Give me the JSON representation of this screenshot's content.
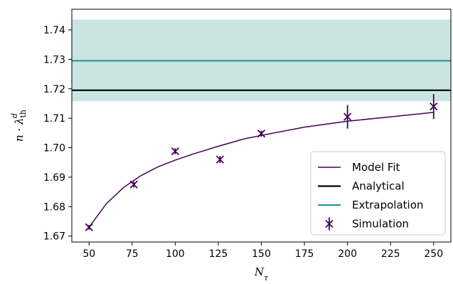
{
  "chart_data": {
    "type": "line",
    "xlabel": "N_τ",
    "ylabel": "n · λ_th^d",
    "xlim": [
      40,
      260
    ],
    "ylim": [
      1.668,
      1.747
    ],
    "xticks": [
      50,
      75,
      100,
      125,
      150,
      175,
      200,
      225,
      250
    ],
    "yticks": [
      1.67,
      1.68,
      1.69,
      1.7,
      1.71,
      1.72,
      1.73,
      1.74
    ],
    "ytick_labels": [
      "1.67",
      "1.68",
      "1.69",
      "1.70",
      "1.71",
      "1.72",
      "1.73",
      "1.74"
    ],
    "analytical": {
      "name": "Analytical",
      "y": 1.7195,
      "color": "#000000"
    },
    "extrapolation": {
      "name": "Extrapolation",
      "y": 1.7295,
      "band": [
        1.7158,
        1.7435
      ],
      "color": "#21918c",
      "band_color": "#c9e4e3"
    },
    "model_fit": {
      "name": "Model Fit",
      "color": "#440154",
      "x": [
        50,
        60,
        70,
        80,
        90,
        100,
        110,
        125,
        140,
        150,
        175,
        200,
        225,
        250
      ],
      "y": [
        1.673,
        1.681,
        1.6865,
        1.6905,
        1.6935,
        1.6958,
        1.6978,
        1.7005,
        1.703,
        1.7042,
        1.707,
        1.709,
        1.7105,
        1.712
      ]
    },
    "simulation": {
      "name": "Simulation",
      "color": "#440154",
      "points": [
        {
          "x": 50,
          "y": 1.673,
          "err": 0.0008
        },
        {
          "x": 76,
          "y": 1.6875,
          "err": 0.001
        },
        {
          "x": 100,
          "y": 1.6988,
          "err": 0.001
        },
        {
          "x": 126,
          "y": 1.696,
          "err": 0.0012
        },
        {
          "x": 150,
          "y": 1.7048,
          "err": 0.001
        },
        {
          "x": 200,
          "y": 1.7105,
          "err": 0.004
        },
        {
          "x": 250,
          "y": 1.714,
          "err": 0.0042
        }
      ]
    },
    "legend": {
      "placement": "lower-right",
      "entries": [
        "Model Fit",
        "Analytical",
        "Extrapolation",
        "Simulation"
      ]
    }
  }
}
